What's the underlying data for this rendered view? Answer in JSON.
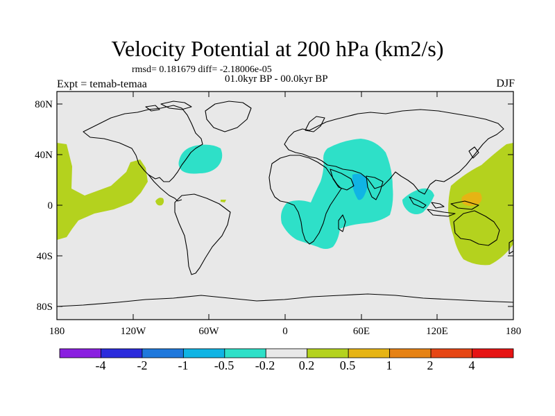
{
  "title": "Velocity Potential at 200 hPa (km2/s)",
  "stats": "rmsd= 0.181679 diff= -2.18006e-05",
  "period": "01.0kyr BP - 00.0kyr BP",
  "experiment": "Expt = temab-temaa",
  "season": "DJF",
  "map": {
    "background_color": "#e8e8e8",
    "lat_ticks": [
      "80N",
      "40N",
      "0",
      "40S",
      "80S"
    ],
    "lon_ticks": [
      "180",
      "120W",
      "60W",
      "0",
      "60E",
      "120E",
      "180"
    ]
  },
  "colorbar": {
    "colors": [
      "#8a1fe0",
      "#2b2bdc",
      "#1f78dc",
      "#10b4e4",
      "#2ee0c8",
      "#e8e8e8",
      "#b4d21e",
      "#e6b414",
      "#e68214",
      "#e64614",
      "#e61414"
    ],
    "labels": [
      "-4",
      "-2",
      "-1",
      "-0.5",
      "-0.2",
      "0.2",
      "0.5",
      "1",
      "2",
      "4"
    ]
  },
  "palette": {
    "negative_weak": "#2ee0c8",
    "negative_mid": "#10b4e4",
    "positive_weak": "#b4d21e",
    "positive_mid": "#e6b414"
  }
}
